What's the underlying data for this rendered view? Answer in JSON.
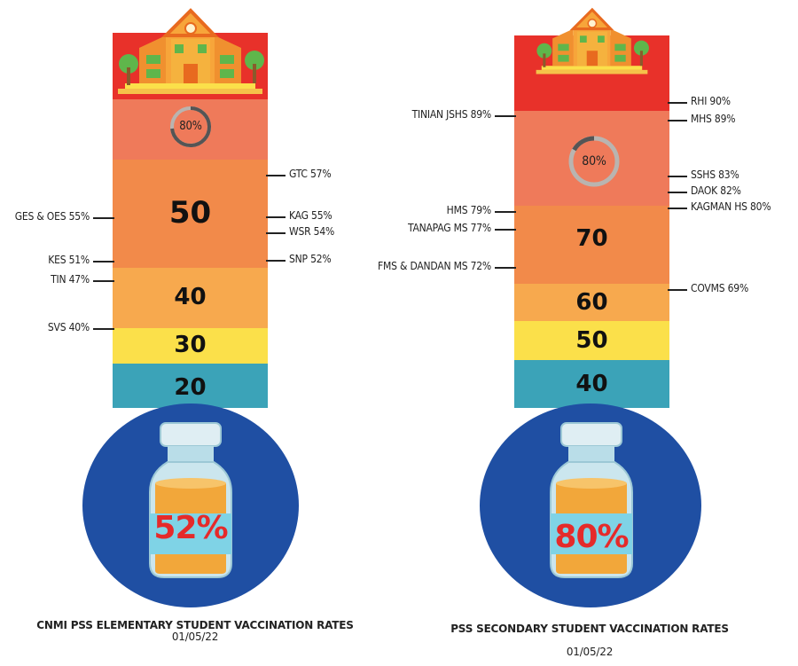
{
  "chart_data": [
    {
      "type": "thermometer",
      "title": "CNMI PSS ELEMENTARY STUDENT VACCINATION RATES",
      "date": "01/05/22",
      "overall_value": 52,
      "overall_label": "52%",
      "goal_label": "80%",
      "scale_labels": [
        "50",
        "40",
        "30",
        "20"
      ],
      "schools": [
        {
          "label": "GTC 57%",
          "name": "GTC",
          "value": 57,
          "side": "right"
        },
        {
          "label": "GES & OES 55%",
          "name": "GES & OES",
          "value": 55,
          "side": "left"
        },
        {
          "label": "KAG 55%",
          "name": "KAG",
          "value": 55,
          "side": "right"
        },
        {
          "label": "WSR 54%",
          "name": "WSR",
          "value": 54,
          "side": "right"
        },
        {
          "label": "KES 51%",
          "name": "KES",
          "value": 51,
          "side": "left"
        },
        {
          "label": "SNP 52%",
          "name": "SNP",
          "value": 52,
          "side": "right"
        },
        {
          "label": "TIN 47%",
          "name": "TIN",
          "value": 47,
          "side": "left"
        },
        {
          "label": "SVS 40%",
          "name": "SVS",
          "value": 40,
          "side": "left"
        }
      ]
    },
    {
      "type": "thermometer",
      "title": "PSS SECONDARY STUDENT VACCINATION RATES",
      "date": "01/05/22",
      "overall_value": 80,
      "overall_label": "80%",
      "goal_label": "80%",
      "scale_labels": [
        "70",
        "60",
        "50",
        "40"
      ],
      "schools": [
        {
          "label": "RHI 90%",
          "name": "RHI",
          "value": 90,
          "side": "right"
        },
        {
          "label": "TINIAN JSHS 89%",
          "name": "TINIAN JSHS",
          "value": 89,
          "side": "left"
        },
        {
          "label": "MHS 89%",
          "name": "MHS",
          "value": 89,
          "side": "right"
        },
        {
          "label": "SSHS 83%",
          "name": "SSHS",
          "value": 83,
          "side": "right"
        },
        {
          "label": "DAOK 82%",
          "name": "DAOK",
          "value": 82,
          "side": "right"
        },
        {
          "label": "KAGMAN HS 80%",
          "name": "KAGMAN HS",
          "value": 80,
          "side": "right"
        },
        {
          "label": "HMS 79%",
          "name": "HMS",
          "value": 79,
          "side": "left"
        },
        {
          "label": "TANAPAG MS 77%",
          "name": "TANAPAG MS",
          "value": 77,
          "side": "left"
        },
        {
          "label": "FMS & DANDAN MS 72%",
          "name": "FMS & DANDAN MS",
          "value": 72,
          "side": "left"
        },
        {
          "label": "COVMS 69%",
          "name": "COVMS",
          "value": 69,
          "side": "right"
        }
      ]
    }
  ],
  "colors": {
    "top_red": "#e8312a",
    "salmon": "#ef7a5a",
    "orange": "#f28a4a",
    "light_orange": "#f7a94e",
    "yellow": "#fbe04a",
    "teal": "#3ba3b8",
    "bulb_blue": "#1f4fa3",
    "vial_number": "#e52a2a"
  }
}
